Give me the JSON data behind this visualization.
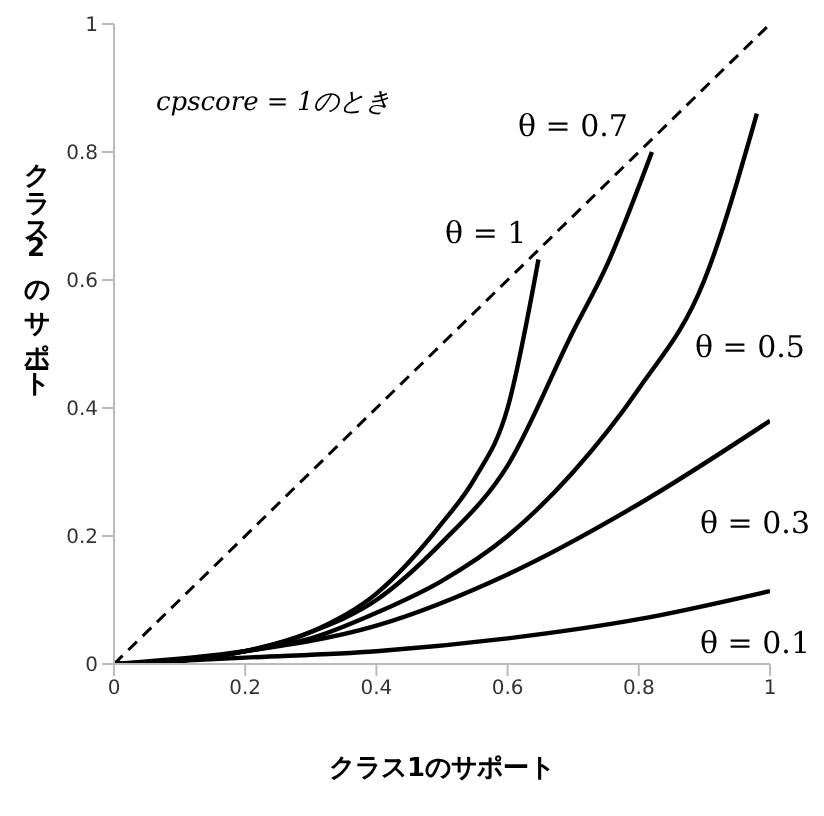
{
  "chart_data": {
    "type": "line",
    "xlabel": "クラス1のサポート",
    "ylabel": "クラス2のサポート",
    "annotations": [
      "cpscore = 1のとき"
    ],
    "xlim": [
      0,
      1
    ],
    "ylim": [
      0,
      1
    ],
    "xticks": [
      0,
      0.2,
      0.4,
      0.6,
      0.8,
      1
    ],
    "yticks": [
      0,
      0.2,
      0.4,
      0.6,
      0.8,
      1
    ],
    "grid": false,
    "legend": false,
    "marker": "none",
    "series": [
      {
        "color": "#000000",
        "line_style": "dashed",
        "x": [
          0,
          1
        ],
        "values": [
          0,
          1
        ]
      },
      {
        "name": "θ = 1",
        "color": "#000000",
        "line_style": "solid",
        "x": [
          0,
          0.1,
          0.2,
          0.3,
          0.4,
          0.5,
          0.55,
          0.6,
          0.647
        ],
        "values": [
          0,
          0.005,
          0.02,
          0.05,
          0.11,
          0.22,
          0.29,
          0.4,
          0.632
        ]
      },
      {
        "name": "θ = 0.7",
        "color": "#000000",
        "line_style": "solid",
        "x": [
          0,
          0.1,
          0.2,
          0.3,
          0.4,
          0.5,
          0.6,
          0.7,
          0.75,
          0.82
        ],
        "values": [
          0,
          0.005,
          0.02,
          0.05,
          0.1,
          0.19,
          0.31,
          0.52,
          0.62,
          0.8
        ]
      },
      {
        "name": "θ = 0.5",
        "color": "#000000",
        "line_style": "solid",
        "x": [
          0,
          0.1,
          0.2,
          0.3,
          0.4,
          0.5,
          0.6,
          0.7,
          0.8,
          0.9,
          0.98
        ],
        "values": [
          0,
          0.005,
          0.02,
          0.04,
          0.08,
          0.13,
          0.2,
          0.3,
          0.43,
          0.6,
          0.86
        ]
      },
      {
        "name": "θ = 0.3",
        "color": "#000000",
        "line_style": "solid",
        "x": [
          0,
          0.2,
          0.4,
          0.6,
          0.8,
          1
        ],
        "values": [
          0,
          0.02,
          0.06,
          0.14,
          0.25,
          0.38
        ]
      },
      {
        "name": "θ = 0.1",
        "color": "#000000",
        "line_style": "solid",
        "x": [
          0,
          0.2,
          0.4,
          0.6,
          0.8,
          1
        ],
        "values": [
          0,
          0.01,
          0.02,
          0.04,
          0.07,
          0.114
        ]
      }
    ]
  }
}
